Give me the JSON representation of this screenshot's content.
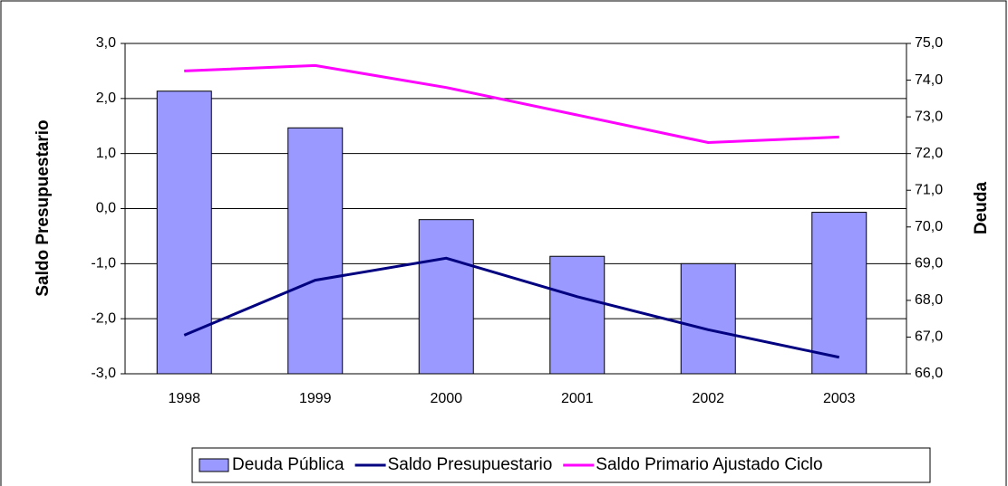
{
  "chart_data": {
    "type": "bar_line",
    "ylabel": "Saldo Presupuestario",
    "y2label": "Deuda",
    "categories": [
      "1998",
      "1999",
      "2000",
      "2001",
      "2002",
      "2003"
    ],
    "series": [
      {
        "name": "Deuda Pública",
        "type": "bar",
        "axis": "y2",
        "color": "#9999ff",
        "values": [
          73.7,
          72.7,
          70.2,
          69.2,
          69.0,
          70.4
        ]
      },
      {
        "name": "Saldo Presupuestario",
        "type": "line",
        "axis": "y",
        "color": "#000080",
        "values": [
          -2.3,
          -1.3,
          -0.9,
          -1.6,
          -2.2,
          -2.7
        ]
      },
      {
        "name": "Saldo Primario Ajustado Ciclo",
        "type": "line",
        "axis": "y",
        "color": "#ff00ff",
        "values": [
          2.5,
          2.6,
          2.2,
          1.7,
          1.2,
          1.3
        ]
      }
    ],
    "ylim": [
      -3,
      3
    ],
    "yticks": [
      {
        "value": -3,
        "label": "-3,0"
      },
      {
        "value": -2,
        "label": "-2,0"
      },
      {
        "value": -1,
        "label": "-1,0"
      },
      {
        "value": 0,
        "label": "0,0"
      },
      {
        "value": 1,
        "label": "1,0"
      },
      {
        "value": 2,
        "label": "2,0"
      },
      {
        "value": 3,
        "label": "3,0"
      }
    ],
    "y2lim": [
      66,
      75
    ],
    "y2ticks": [
      {
        "value": 66,
        "label": "66,0"
      },
      {
        "value": 67,
        "label": "67,0"
      },
      {
        "value": 68,
        "label": "68,0"
      },
      {
        "value": 69,
        "label": "69,0"
      },
      {
        "value": 70,
        "label": "70,0"
      },
      {
        "value": 71,
        "label": "71,0"
      },
      {
        "value": 72,
        "label": "72,0"
      },
      {
        "value": 73,
        "label": "73,0"
      },
      {
        "value": 74,
        "label": "74,0"
      },
      {
        "value": 75,
        "label": "75,0"
      }
    ],
    "grid": true,
    "legend": "bottom"
  }
}
